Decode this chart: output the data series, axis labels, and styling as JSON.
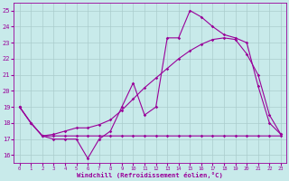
{
  "xlabel": "Windchill (Refroidissement éolien,°C)",
  "background_color": "#c8eaea",
  "grid_color": "#aacccc",
  "line_color": "#990099",
  "x_ticks": [
    0,
    1,
    2,
    3,
    4,
    5,
    6,
    7,
    8,
    9,
    10,
    11,
    12,
    13,
    14,
    15,
    16,
    17,
    18,
    19,
    20,
    21,
    22,
    23
  ],
  "ylim": [
    15.5,
    25.5
  ],
  "y_ticks": [
    16,
    17,
    18,
    19,
    20,
    21,
    22,
    23,
    24,
    25
  ],
  "line1_y": [
    19.0,
    18.0,
    17.2,
    17.0,
    17.0,
    17.0,
    15.8,
    17.0,
    17.5,
    19.0,
    20.5,
    18.5,
    19.0,
    23.3,
    23.3,
    25.0,
    24.6,
    24.0,
    23.5,
    23.3,
    23.0,
    20.3,
    18.0,
    17.3
  ],
  "line2_y": [
    19.0,
    18.0,
    17.2,
    17.2,
    17.2,
    17.2,
    17.2,
    17.2,
    17.2,
    17.2,
    17.2,
    17.2,
    17.2,
    17.2,
    17.2,
    17.2,
    17.2,
    17.2,
    17.2,
    17.2,
    17.2,
    17.2,
    17.2,
    17.2
  ],
  "line3_y": [
    19.0,
    18.0,
    17.2,
    17.3,
    17.5,
    17.7,
    17.7,
    17.9,
    18.2,
    18.8,
    19.5,
    20.2,
    20.8,
    21.4,
    22.0,
    22.5,
    22.9,
    23.2,
    23.3,
    23.2,
    22.3,
    21.0,
    18.5,
    17.3
  ],
  "marker": "D",
  "marker_size": 1.8,
  "linewidth": 0.8
}
